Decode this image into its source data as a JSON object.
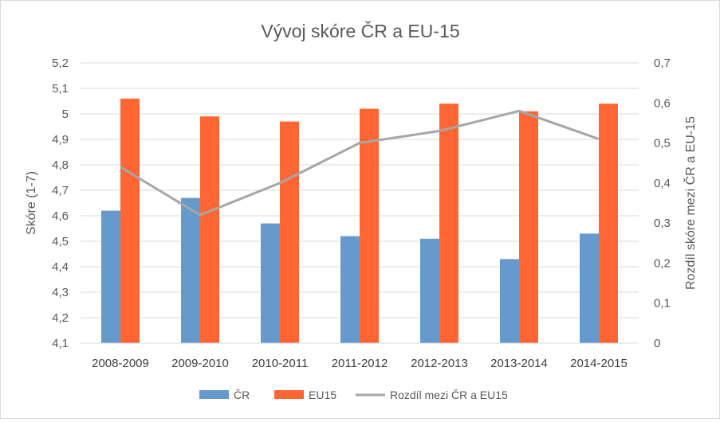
{
  "chart_data": {
    "type": "bar",
    "title": "Vývoj skóre ČR a EU-15",
    "categories": [
      "2008-2009",
      "2009-2010",
      "2010-2011",
      "2011-2012",
      "2012-2013",
      "2013-2014",
      "2014-2015"
    ],
    "series": [
      {
        "name": "ČR",
        "type": "bar",
        "axis": "left",
        "color": "#6699cc",
        "values": [
          4.62,
          4.67,
          4.57,
          4.52,
          4.51,
          4.43,
          4.53
        ]
      },
      {
        "name": "EU15",
        "type": "bar",
        "axis": "left",
        "color": "#ff6633",
        "values": [
          5.06,
          4.99,
          4.97,
          5.02,
          5.04,
          5.01,
          5.04
        ]
      },
      {
        "name": "Rozdíl mezi ČR a EU15",
        "type": "line",
        "axis": "right",
        "color": "#a6a6a6",
        "values": [
          0.44,
          0.32,
          0.4,
          0.5,
          0.53,
          0.58,
          0.51
        ]
      }
    ],
    "ylabel": "Skóre (1-7)",
    "y2label": "Rozdíl skóre mezi ČR a EU-15",
    "ylim": [
      4.1,
      5.2
    ],
    "y2lim": [
      0,
      0.7
    ],
    "yticks": [
      "4,1",
      "4,2",
      "4,3",
      "4,4",
      "4,5",
      "4,6",
      "4,7",
      "4,8",
      "4,9",
      "5",
      "5,1",
      "5,2"
    ],
    "y2ticks": [
      "0",
      "0,1",
      "0,2",
      "0,3",
      "0,4",
      "0,5",
      "0,6",
      "0,7"
    ],
    "grid": true,
    "legend": "bottom"
  }
}
